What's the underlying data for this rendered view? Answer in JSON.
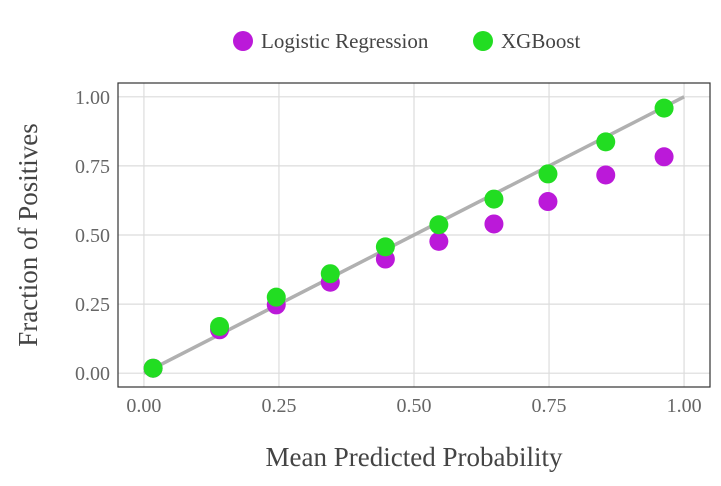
{
  "chart_data": {
    "type": "scatter",
    "title": "",
    "xlabel": "Mean Predicted Probability",
    "ylabel": "Fraction of Positives",
    "xlim": [
      -0.048,
      1.048
    ],
    "ylim": [
      -0.05,
      1.05
    ],
    "xticks": [
      0,
      0.25,
      0.5,
      0.75,
      1.0
    ],
    "yticks": [
      0,
      0.25,
      0.5,
      0.75,
      1.0
    ],
    "xtick_labels": [
      "0.00",
      "0.25",
      "0.50",
      "0.75",
      "1.00"
    ],
    "ytick_labels": [
      "0.00",
      "0.25",
      "0.50",
      "0.75",
      "1.00"
    ],
    "grid": true,
    "legend_position": "top",
    "reference_line": {
      "x": [
        0,
        1
      ],
      "y": [
        0,
        1
      ],
      "color": "#b0b0b0"
    },
    "series": [
      {
        "name": "Logistic Regression",
        "color": "#bb19d9",
        "x": [
          0.017,
          0.14,
          0.245,
          0.345,
          0.447,
          0.546,
          0.648,
          0.748,
          0.855,
          0.963
        ],
        "y": [
          0.018,
          0.157,
          0.247,
          0.329,
          0.413,
          0.477,
          0.54,
          0.621,
          0.717,
          0.783
        ]
      },
      {
        "name": "XGBoost",
        "color": "#22dd22",
        "x": [
          0.017,
          0.14,
          0.245,
          0.345,
          0.447,
          0.546,
          0.648,
          0.748,
          0.855,
          0.963
        ],
        "y": [
          0.018,
          0.169,
          0.275,
          0.36,
          0.457,
          0.537,
          0.63,
          0.721,
          0.837,
          0.959
        ]
      }
    ]
  }
}
